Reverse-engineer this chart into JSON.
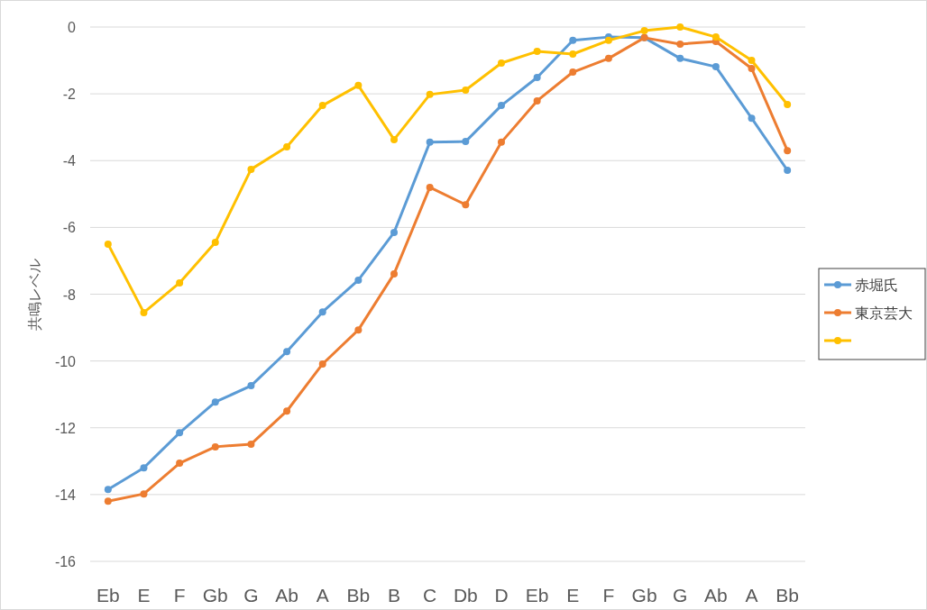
{
  "chart_data": {
    "type": "line",
    "ylabel": "共鳴レベル",
    "categories": [
      "Eb",
      "E",
      "F",
      "Gb",
      "G",
      "Ab",
      "A",
      "Bb",
      "B",
      "C",
      "Db",
      "D",
      "Eb",
      "E",
      "F",
      "Gb",
      "G",
      "Ab",
      "A",
      "Bb"
    ],
    "series": [
      {
        "name": "赤堀氏",
        "color": "#5b9bd5",
        "values": [
          -13.85,
          -13.2,
          -12.15,
          -11.23,
          -10.74,
          -9.72,
          -8.53,
          -7.58,
          -6.15,
          -3.45,
          -3.43,
          -2.35,
          -1.51,
          -0.4,
          -0.3,
          -0.32,
          -0.94,
          -1.19,
          -2.73,
          -4.29
        ]
      },
      {
        "name": "東京芸大",
        "color": "#ed7d31",
        "values": [
          -14.2,
          -13.98,
          -13.06,
          -12.57,
          -12.49,
          -11.5,
          -10.09,
          -9.07,
          -7.39,
          -4.8,
          -5.32,
          -3.45,
          -2.21,
          -1.35,
          -0.94,
          -0.32,
          -0.51,
          -0.43,
          -1.24,
          -3.7
        ]
      },
      {
        "color": "#ffc000",
        "values": [
          -6.5,
          -8.55,
          -7.66,
          -6.45,
          -4.26,
          -3.59,
          -2.35,
          -1.75,
          -3.37,
          -2.02,
          -1.89,
          -1.08,
          -0.73,
          -0.81,
          -0.4,
          -0.11,
          0,
          -0.3,
          -1.0,
          -2.32
        ]
      }
    ],
    "ylim": [
      -16,
      0
    ],
    "yticks": [
      -16,
      -14,
      -12,
      -10,
      -8,
      -6,
      -4,
      -2,
      0
    ],
    "grid": "y",
    "legend": "right",
    "marker": "circle",
    "line_style": "solid"
  }
}
